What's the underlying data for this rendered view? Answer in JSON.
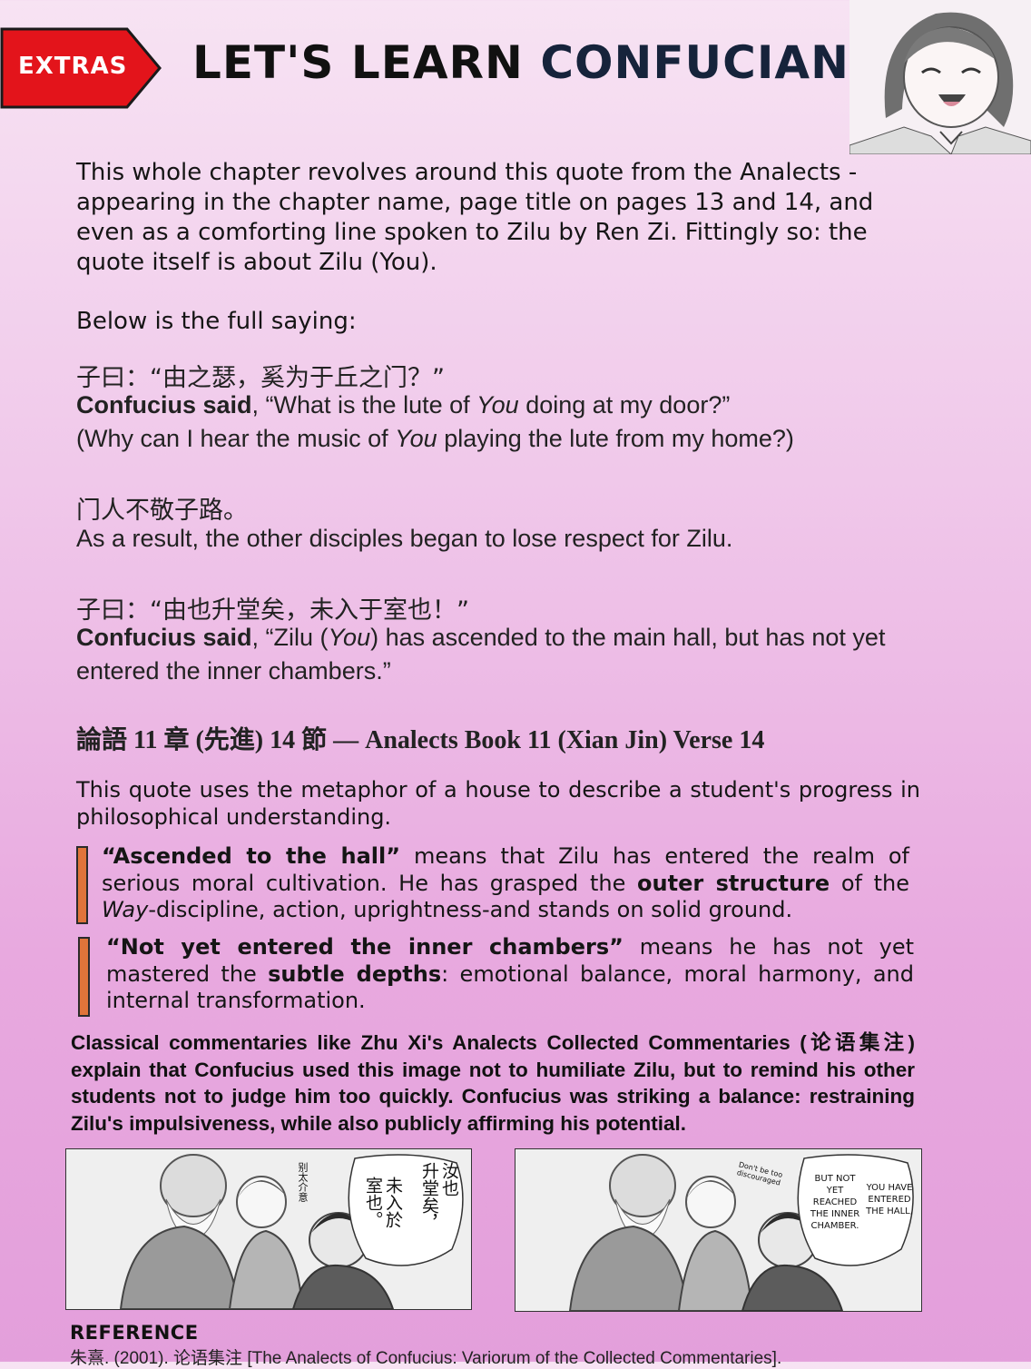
{
  "header": {
    "tag": "EXTRAS",
    "title_part1": "LET'S LEARN",
    "title_part2": "CONFUCIANISM!",
    "colors": {
      "tag_red": "#e3141b",
      "title_dark": "#16233b"
    }
  },
  "intro": {
    "paragraph": "This whole chapter revolves around this quote from the Analects - appearing in the chapter name, page title on pages 13 and 14, and even as a comforting line spoken to Zilu by Ren Zi. Fittingly so: the quote itself is about Zilu (You).",
    "below": "Below is the full saying:"
  },
  "quotes": {
    "q1": {
      "chinese": "子曰：“由之瑟，奚为于丘之门？”",
      "speaker": "Confucius said",
      "text_before": ", “What is the lute of ",
      "name": "You",
      "text_after": " doing at my door?”",
      "gloss_before": "(Why can I hear the music of ",
      "gloss_name": "You",
      "gloss_after": " playing the lute from my home?)"
    },
    "q2": {
      "chinese": "门人不敬子路。",
      "english": "As a result, the other disciples began to lose respect for Zilu."
    },
    "q3": {
      "chinese": "子曰：“由也升堂矣，未入于室也！”",
      "speaker": "Confucius said",
      "text_before": ", “Zilu (",
      "name": "You",
      "text_after": ") has ascended to the main hall, but has not yet entered the inner chambers.”"
    }
  },
  "source": "論語 11 章 (先進) 14 節 — Analects Book 11 (Xian Jin) Verse 14",
  "explanation": {
    "metaphor": "This quote uses the metaphor of a house to describe a student's progress in philosophical understanding.",
    "point1": {
      "lead": "“Ascended to the hall”",
      "text1": " means that Zilu has entered the realm of serious moral cultivation. He has grasped the ",
      "bold": "outer structure",
      "text2": " of the ",
      "italic": "Way",
      "text3": "-discipline, action, uprightness-and stands on solid ground."
    },
    "point2": {
      "lead": "“Not yet entered the inner chambers”",
      "text1": " means he has not yet mastered the ",
      "bold": "subtle depths",
      "text2": ": emotional balance, moral harmony, and internal transformation."
    },
    "bar_color": "#e0743a"
  },
  "commentary": "Classical commentaries like Zhu Xi's Analects Collected Commentaries (论语集注) explain that Confucius used this image not to humiliate Zilu, but to remind his other students not to judge him too quickly. Confucius was striking a balance: restraining Zilu's impulsiveness, while also publicly affirming his potential.",
  "panels": {
    "left": {
      "small_note": "别太介意",
      "bubble_col1": "汝也",
      "bubble_col2": "升堂矣，",
      "bubble_col3": "未入於",
      "bubble_col4": "室也。"
    },
    "right": {
      "small_note": "Don't be too discouraged",
      "bubble_left": "BUT NOT YET REACHED THE INNER CHAMBER.",
      "bubble_right": "YOU HAVE ENTERED THE HALL,"
    }
  },
  "reference": {
    "heading": "REFERENCE",
    "text": "朱熹. (2001). 论语集注 [The Analects of Confucius: Variorum of the Collected Commentaries]."
  }
}
